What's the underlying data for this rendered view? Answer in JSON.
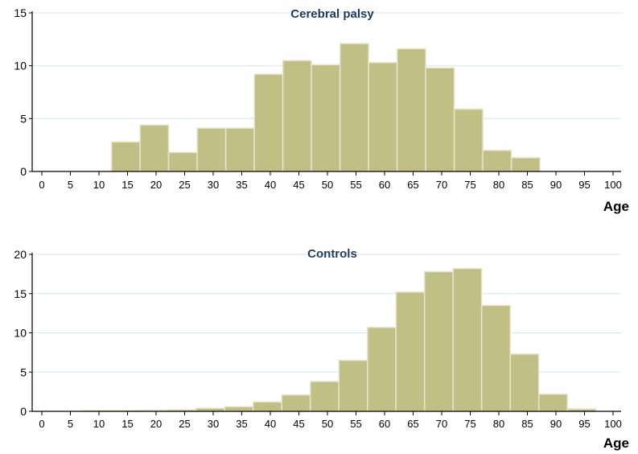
{
  "colors": {
    "bar_fill": "#c0bf86",
    "bar_stroke": "#e8e6cf",
    "grid": "#d6e6ea",
    "axis": "#000000",
    "title": "#1f3a5a"
  },
  "chart_data": [
    {
      "type": "bar",
      "title": "Cerebral palsy",
      "xlabel": "Age",
      "ylabel": "",
      "grid": true,
      "xlim": [
        0,
        100
      ],
      "ylim": [
        0,
        15
      ],
      "x_ticks": [
        "0",
        "5",
        "10",
        "15",
        "20",
        "25",
        "30",
        "35",
        "40",
        "45",
        "50",
        "55",
        "60",
        "65",
        "70",
        "75",
        "80",
        "85",
        "90",
        "95",
        "100"
      ],
      "y_ticks": [
        "0",
        "5",
        "10",
        "15"
      ],
      "bins": [
        {
          "start": 12.2,
          "end": 17.2,
          "value": 2.8
        },
        {
          "start": 17.2,
          "end": 22.2,
          "value": 4.4
        },
        {
          "start": 22.2,
          "end": 27.2,
          "value": 1.8
        },
        {
          "start": 27.2,
          "end": 32.2,
          "value": 4.1
        },
        {
          "start": 32.2,
          "end": 37.2,
          "value": 4.1
        },
        {
          "start": 37.2,
          "end": 42.2,
          "value": 9.2
        },
        {
          "start": 42.2,
          "end": 47.2,
          "value": 10.5
        },
        {
          "start": 47.2,
          "end": 52.2,
          "value": 10.1
        },
        {
          "start": 52.2,
          "end": 57.2,
          "value": 12.1
        },
        {
          "start": 57.2,
          "end": 62.2,
          "value": 10.3
        },
        {
          "start": 62.2,
          "end": 67.2,
          "value": 11.6
        },
        {
          "start": 67.2,
          "end": 72.2,
          "value": 9.8
        },
        {
          "start": 72.2,
          "end": 77.2,
          "value": 5.9
        },
        {
          "start": 77.2,
          "end": 82.2,
          "value": 2.0
        },
        {
          "start": 82.2,
          "end": 87.2,
          "value": 1.3
        }
      ]
    },
    {
      "type": "bar",
      "title": "Controls",
      "xlabel": "Age",
      "ylabel": "",
      "grid": true,
      "xlim": [
        0,
        100
      ],
      "ylim": [
        0,
        20
      ],
      "x_ticks": [
        "0",
        "5",
        "10",
        "15",
        "20",
        "25",
        "30",
        "35",
        "40",
        "45",
        "50",
        "55",
        "60",
        "65",
        "70",
        "75",
        "80",
        "85",
        "90",
        "95",
        "100"
      ],
      "y_ticks": [
        "0",
        "5",
        "10",
        "15",
        "20"
      ],
      "bins": [
        {
          "start": 7.0,
          "end": 12.0,
          "value": 0.1
        },
        {
          "start": 12.0,
          "end": 17.0,
          "value": 0.1
        },
        {
          "start": 17.0,
          "end": 22.0,
          "value": 0.15
        },
        {
          "start": 22.0,
          "end": 27.0,
          "value": 0.2
        },
        {
          "start": 27.0,
          "end": 32.0,
          "value": 0.4
        },
        {
          "start": 32.0,
          "end": 37.0,
          "value": 0.6
        },
        {
          "start": 37.0,
          "end": 42.0,
          "value": 1.2
        },
        {
          "start": 42.0,
          "end": 47.0,
          "value": 2.1
        },
        {
          "start": 47.0,
          "end": 52.0,
          "value": 3.8
        },
        {
          "start": 52.0,
          "end": 57.0,
          "value": 6.5
        },
        {
          "start": 57.0,
          "end": 62.0,
          "value": 10.7
        },
        {
          "start": 62.0,
          "end": 67.0,
          "value": 15.2
        },
        {
          "start": 67.0,
          "end": 72.0,
          "value": 17.8
        },
        {
          "start": 72.0,
          "end": 77.0,
          "value": 18.2
        },
        {
          "start": 77.0,
          "end": 82.0,
          "value": 13.5
        },
        {
          "start": 82.0,
          "end": 87.0,
          "value": 7.3
        },
        {
          "start": 87.0,
          "end": 92.0,
          "value": 2.2
        },
        {
          "start": 92.0,
          "end": 97.0,
          "value": 0.3
        }
      ]
    }
  ]
}
